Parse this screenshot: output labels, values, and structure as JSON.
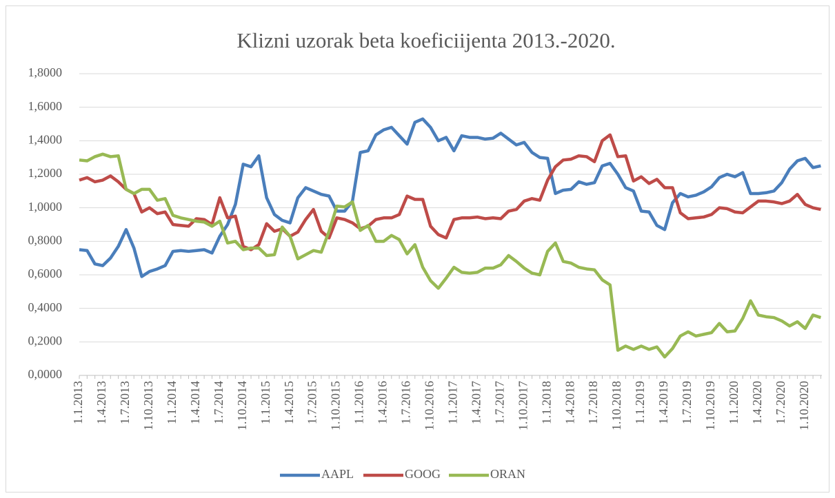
{
  "chart_data": {
    "type": "line",
    "title": "Klizni uzorak beta koeficiijenta 2013.-2020.",
    "categories": [
      "1.1.2013",
      null,
      null,
      "1.4.2013",
      null,
      null,
      "1.7.2013",
      null,
      null,
      "1.10.2013",
      null,
      null,
      "1.1.2014",
      null,
      null,
      "1.4.2014",
      null,
      null,
      "1.7.2014",
      null,
      null,
      "1.10.2014",
      null,
      null,
      "1.1.2015",
      null,
      null,
      "1.4.2015",
      null,
      null,
      "1.7.2015",
      null,
      null,
      "1.10.2015",
      null,
      null,
      "1.1.2016",
      null,
      null,
      "1.4.2016",
      null,
      null,
      "1.7.2016",
      null,
      null,
      "1.10.2016",
      null,
      null,
      "1.1.2017",
      null,
      null,
      "1.4.2017",
      null,
      null,
      "1.7.2017",
      null,
      null,
      "1.10.2017",
      null,
      null,
      "1.1.2018",
      null,
      null,
      "1.4.2018",
      null,
      null,
      "1.7.2018",
      null,
      null,
      "1.10.2018",
      null,
      null,
      "1.1.2019",
      null,
      null,
      "1.4.2019",
      null,
      null,
      "1.7.2019",
      null,
      null,
      "1.10.2019",
      null,
      null,
      "1.1.2020",
      null,
      null,
      "1.4.2020",
      null,
      null,
      "1.7.2020",
      null,
      null,
      "1.10.2020",
      null,
      null
    ],
    "series": [
      {
        "name": "AAPL",
        "color": "#4a7ebb",
        "values": [
          0.75,
          0.745,
          0.665,
          0.655,
          0.7,
          0.77,
          0.87,
          0.76,
          0.59,
          0.62,
          0.635,
          0.655,
          0.74,
          0.745,
          0.74,
          0.745,
          0.75,
          0.73,
          0.83,
          0.9,
          1.02,
          1.26,
          1.245,
          1.31,
          1.06,
          0.96,
          0.925,
          0.91,
          1.06,
          1.12,
          1.1,
          1.08,
          1.07,
          0.98,
          0.98,
          1.04,
          1.33,
          1.34,
          1.435,
          1.465,
          1.48,
          1.43,
          1.38,
          1.51,
          1.53,
          1.48,
          1.4,
          1.42,
          1.34,
          1.43,
          1.42,
          1.42,
          1.41,
          1.415,
          1.445,
          1.41,
          1.375,
          1.39,
          1.33,
          1.3,
          1.295,
          1.085,
          1.105,
          1.11,
          1.155,
          1.14,
          1.15,
          1.25,
          1.265,
          1.2,
          1.12,
          1.1,
          0.98,
          0.975,
          0.895,
          0.87,
          1.03,
          1.085,
          1.065,
          1.075,
          1.095,
          1.125,
          1.18,
          1.2,
          1.185,
          1.21,
          1.085,
          1.085,
          1.09,
          1.1,
          1.15,
          1.23,
          1.28,
          1.295,
          1.24,
          1.25
        ]
      },
      {
        "name": "GOOG",
        "color": "#be4b48",
        "values": [
          1.165,
          1.18,
          1.155,
          1.165,
          1.19,
          1.155,
          1.11,
          1.085,
          0.975,
          1.0,
          0.965,
          0.975,
          0.9,
          0.895,
          0.89,
          0.935,
          0.93,
          0.9,
          1.06,
          0.94,
          0.95,
          0.77,
          0.75,
          0.78,
          0.905,
          0.86,
          0.875,
          0.83,
          0.855,
          0.93,
          0.99,
          0.86,
          0.82,
          0.94,
          0.93,
          0.91,
          0.875,
          0.89,
          0.93,
          0.94,
          0.94,
          0.96,
          1.07,
          1.05,
          1.05,
          0.89,
          0.84,
          0.82,
          0.93,
          0.94,
          0.94,
          0.945,
          0.935,
          0.94,
          0.935,
          0.98,
          0.99,
          1.04,
          1.055,
          1.045,
          1.165,
          1.245,
          1.285,
          1.29,
          1.31,
          1.305,
          1.275,
          1.4,
          1.435,
          1.305,
          1.31,
          1.16,
          1.185,
          1.145,
          1.17,
          1.12,
          1.12,
          0.97,
          0.935,
          0.94,
          0.945,
          0.96,
          1.0,
          0.995,
          0.975,
          0.97,
          1.005,
          1.04,
          1.04,
          1.035,
          1.025,
          1.04,
          1.08,
          1.02,
          1.0,
          0.99
        ]
      },
      {
        "name": "ORAN",
        "color": "#98b954",
        "values": [
          1.285,
          1.28,
          1.305,
          1.32,
          1.305,
          1.31,
          1.11,
          1.085,
          1.11,
          1.11,
          1.045,
          1.055,
          0.955,
          0.94,
          0.93,
          0.92,
          0.915,
          0.89,
          0.92,
          0.79,
          0.8,
          0.75,
          0.76,
          0.76,
          0.715,
          0.72,
          0.885,
          0.83,
          0.695,
          0.72,
          0.745,
          0.735,
          0.86,
          1.01,
          1.005,
          1.035,
          0.865,
          0.895,
          0.8,
          0.8,
          0.835,
          0.81,
          0.725,
          0.78,
          0.645,
          0.565,
          0.52,
          0.58,
          0.645,
          0.615,
          0.61,
          0.615,
          0.64,
          0.64,
          0.66,
          0.715,
          0.68,
          0.64,
          0.61,
          0.6,
          0.74,
          0.79,
          0.68,
          0.67,
          0.645,
          0.635,
          0.63,
          0.57,
          0.54,
          0.15,
          0.175,
          0.155,
          0.175,
          0.155,
          0.17,
          0.11,
          0.16,
          0.235,
          0.26,
          0.235,
          0.245,
          0.255,
          0.31,
          0.26,
          0.265,
          0.34,
          0.445,
          0.36,
          0.35,
          0.345,
          0.325,
          0.295,
          0.32,
          0.28,
          0.36,
          0.345
        ]
      }
    ],
    "ylim": [
      0,
      1.8
    ],
    "yticks": [
      {
        "value": 0,
        "label": "0,0000"
      },
      {
        "value": 0.2,
        "label": "0,2000"
      },
      {
        "value": 0.4,
        "label": "0,4000"
      },
      {
        "value": 0.6,
        "label": "0,6000"
      },
      {
        "value": 0.8,
        "label": "0,8000"
      },
      {
        "value": 1,
        "label": "1,0000"
      },
      {
        "value": 1.2,
        "label": "1,2000"
      },
      {
        "value": 1.4,
        "label": "1,4000"
      },
      {
        "value": 1.6,
        "label": "1,6000"
      },
      {
        "value": 1.8,
        "label": "1,8000"
      }
    ],
    "grid": true,
    "legend": "bottom"
  }
}
